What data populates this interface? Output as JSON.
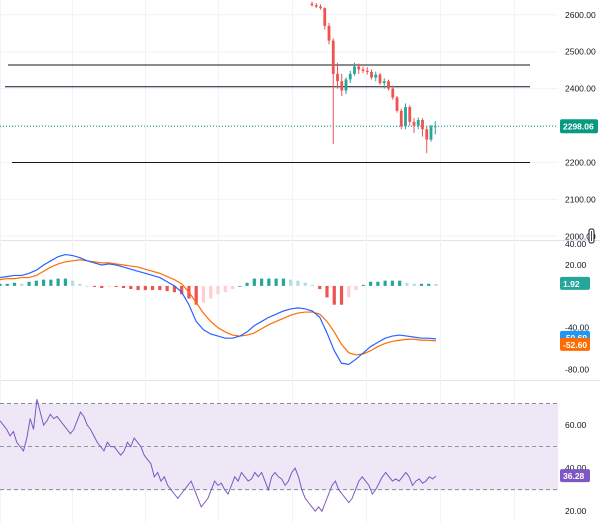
{
  "colors": {
    "up": "#26a69a",
    "down": "#ef5350",
    "macd_line": "#2962ff",
    "signal_line": "#ff6d00",
    "rsi_line": "#7e57c2",
    "rsi_band": "#ede7f6",
    "last_price": "#089981",
    "rsi_badge": "#7e57c2",
    "macd_badge": "#2196f3",
    "signal_badge": "#ff6d00",
    "grid": "#f0f3fa",
    "hline": "#131722"
  },
  "chart_data": [
    {
      "type": "candlestick",
      "pane": "price",
      "y_ticks": [
        "2600.00",
        "2500.00",
        "2400.00",
        "2300.00",
        "2200.00",
        "2100.00",
        "2000.00"
      ],
      "ylim": [
        1990,
        2640
      ],
      "last_price_label": "2298.06",
      "last_price": 2298.06,
      "horizontal_levels": [
        2464,
        2405,
        2200
      ],
      "candles": [
        [
          2630,
          2636,
          2622,
          2626
        ],
        [
          2626,
          2632,
          2618,
          2622
        ],
        [
          2622,
          2628,
          2614,
          2618
        ],
        [
          2618,
          2620,
          2560,
          2570
        ],
        [
          2570,
          2578,
          2520,
          2530
        ],
        [
          2530,
          2536,
          2250,
          2440
        ],
        [
          2440,
          2470,
          2400,
          2420
        ],
        [
          2420,
          2440,
          2380,
          2395
        ],
        [
          2395,
          2430,
          2385,
          2425
        ],
        [
          2425,
          2448,
          2415,
          2440
        ],
        [
          2440,
          2470,
          2435,
          2460
        ],
        [
          2460,
          2468,
          2440,
          2452
        ],
        [
          2452,
          2460,
          2442,
          2448
        ],
        [
          2448,
          2458,
          2438,
          2445
        ],
        [
          2445,
          2452,
          2425,
          2430
        ],
        [
          2430,
          2446,
          2420,
          2438
        ],
        [
          2438,
          2442,
          2410,
          2415
        ],
        [
          2415,
          2428,
          2400,
          2420
        ],
        [
          2420,
          2424,
          2395,
          2400
        ],
        [
          2400,
          2408,
          2370,
          2376
        ],
        [
          2376,
          2380,
          2335,
          2340
        ],
        [
          2340,
          2345,
          2290,
          2298
        ],
        [
          2298,
          2360,
          2290,
          2350
        ],
        [
          2350,
          2355,
          2300,
          2310
        ],
        [
          2310,
          2320,
          2280,
          2300
        ],
        [
          2300,
          2322,
          2290,
          2315
        ],
        [
          2315,
          2320,
          2270,
          2290
        ],
        [
          2290,
          2298,
          2225,
          2262
        ],
        [
          2262,
          2302,
          2256,
          2298
        ],
        [
          2298,
          2312,
          2276,
          2298
        ]
      ]
    },
    {
      "type": "macd",
      "pane": "macd",
      "y_ticks": [
        "40.00",
        "20.00",
        "-40.00",
        "-80.00"
      ],
      "ylim": [
        -90,
        42
      ],
      "macd_label": "-50.69",
      "signal_label": "-52.60",
      "hist_label": "1.92",
      "macd_line": [
        8,
        9,
        10,
        10,
        12,
        15,
        20,
        24,
        28,
        30,
        29,
        27,
        24,
        22,
        20,
        21,
        20,
        18,
        16,
        14,
        12,
        10,
        8,
        4,
        0,
        -6,
        -18,
        -34,
        -42,
        -46,
        -48,
        -50,
        -50,
        -48,
        -44,
        -38,
        -34,
        -30,
        -27,
        -24,
        -22,
        -21,
        -22,
        -24,
        -30,
        -45,
        -62,
        -74,
        -75,
        -70,
        -64,
        -58,
        -54,
        -50,
        -48,
        -47,
        -48,
        -49,
        -50,
        -50,
        -50.69
      ],
      "signal_line": [
        6,
        7,
        7,
        8,
        8,
        10,
        14,
        18,
        21,
        23,
        24,
        25,
        24,
        23,
        22,
        22,
        21,
        20,
        19,
        18,
        16,
        14,
        12,
        9,
        6,
        2,
        -6,
        -16,
        -26,
        -34,
        -40,
        -44,
        -47,
        -48,
        -47,
        -45,
        -41,
        -37,
        -34,
        -31,
        -28,
        -26,
        -25,
        -25,
        -27,
        -34,
        -44,
        -56,
        -64,
        -66,
        -65,
        -62,
        -58,
        -55,
        -53,
        -52,
        -51,
        -51,
        -52,
        -52,
        -52.6
      ],
      "histogram": [
        2,
        2,
        3,
        2,
        4,
        5,
        6,
        6,
        7,
        7,
        5,
        2,
        0,
        -1,
        -2,
        -1,
        -1,
        -2,
        -3,
        -4,
        -4,
        -4,
        -4,
        -5,
        -6,
        -8,
        -12,
        -18,
        -16,
        -12,
        -8,
        -6,
        -3,
        0,
        3,
        7,
        7,
        7,
        7,
        7,
        6,
        5,
        3,
        1,
        -3,
        -11,
        -18,
        -18,
        -11,
        -4,
        1,
        4,
        4,
        5,
        5,
        5,
        3,
        2,
        2,
        2,
        1.92
      ]
    },
    {
      "type": "rsi",
      "pane": "rsi",
      "y_ticks": [
        "60.00",
        "40.00",
        "20.00"
      ],
      "ylim": [
        15,
        80
      ],
      "band": [
        30,
        70
      ],
      "midline": 50,
      "last_label": "36.28",
      "values": [
        62,
        60,
        58,
        55,
        57,
        52,
        50,
        48,
        54,
        63,
        58,
        72,
        66,
        60,
        62,
        65,
        63,
        64,
        62,
        60,
        58,
        56,
        58,
        62,
        66,
        64,
        60,
        58,
        55,
        52,
        50,
        48,
        52,
        50,
        50,
        48,
        46,
        48,
        52,
        50,
        54,
        52,
        50,
        46,
        44,
        42,
        36,
        38,
        34,
        36,
        32,
        30,
        28,
        26,
        28,
        30,
        32,
        34,
        30,
        26,
        22,
        24,
        26,
        30,
        34,
        32,
        33,
        30,
        28,
        32,
        36,
        34,
        38,
        36,
        34,
        35,
        38,
        36,
        38,
        34,
        30,
        36,
        38,
        36,
        35,
        32,
        34,
        38,
        40,
        36,
        30,
        26,
        24,
        22,
        20,
        22,
        20,
        24,
        28,
        32,
        34,
        30,
        28,
        26,
        24,
        26,
        30,
        34,
        36,
        34,
        32,
        28,
        30,
        33,
        36,
        38,
        36,
        34,
        35,
        34,
        36,
        38,
        36,
        32,
        34,
        35,
        33,
        34,
        36,
        35,
        36.28
      ]
    }
  ]
}
